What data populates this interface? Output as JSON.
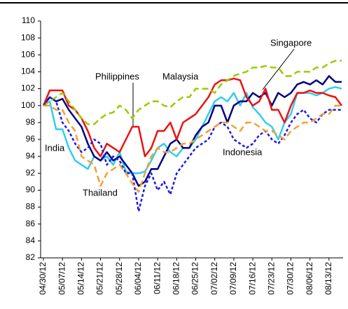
{
  "chart_data": {
    "type": "line",
    "categories": [
      "04/30/12",
      null,
      null,
      "05/07/12",
      null,
      null,
      "05/14/12",
      null,
      null,
      "05/21/12",
      null,
      null,
      "05/28/12",
      null,
      null,
      "06/04/12",
      null,
      null,
      "06/11/12",
      null,
      null,
      "06/18/12",
      null,
      null,
      "06/25/12",
      null,
      null,
      "07/02/12",
      null,
      null,
      "07/09/12",
      null,
      null,
      "07/16/12",
      null,
      null,
      "07/23/12",
      null,
      null,
      "07/30/12",
      null,
      null,
      "08/06/12",
      null,
      null,
      "08/13/12",
      null,
      null
    ],
    "series": [
      {
        "name": "India",
        "color": "#33ccee",
        "style": "solid",
        "values": [
          100,
          100.5,
          97.2,
          97.2,
          95,
          93.5,
          93,
          92.5,
          94,
          93.5,
          94,
          93,
          94.5,
          92.2,
          92,
          92,
          92.2,
          93.5,
          95,
          95.5,
          94.5,
          94,
          95,
          95,
          96,
          97.5,
          99,
          100.5,
          101,
          100.5,
          101.5,
          100,
          101.5,
          99.8,
          99,
          98,
          97.5,
          96,
          98,
          99,
          101.5,
          101.5,
          101.5,
          101.2,
          101.5,
          102,
          102.2,
          102
        ]
      },
      {
        "name": "Singapore",
        "color": "#000080",
        "style": "solid",
        "values": [
          100,
          101,
          100.5,
          100.8,
          99.5,
          98.5,
          97.5,
          95.5,
          94,
          93.5,
          94.5,
          93.5,
          94,
          93,
          92,
          90.5,
          91,
          92.5,
          92.5,
          94,
          95.5,
          96,
          95,
          95,
          96.5,
          97.5,
          98,
          100,
          100,
          98,
          100,
          100.5,
          100.5,
          101.5,
          101,
          101.5,
          100,
          101.5,
          101,
          101.5,
          102.5,
          102.8,
          102.5,
          103,
          102.5,
          103.5,
          102.8,
          102.8
        ]
      },
      {
        "name": "Philippines",
        "color": "#ee1111",
        "style": "solid",
        "values": [
          100,
          101.8,
          101.8,
          101.8,
          100,
          99.5,
          98.5,
          97,
          95,
          94,
          95.5,
          95,
          94.5,
          96,
          97.5,
          97.5,
          94,
          95,
          97,
          97,
          98,
          96,
          98,
          98.5,
          99,
          100,
          101,
          102.5,
          103,
          103,
          103.2,
          103,
          101,
          100,
          100.5,
          102,
          99.5,
          99.5,
          98,
          100,
          101.5,
          101.5,
          101.8,
          101.5,
          101.5,
          101.2,
          101,
          100
        ]
      },
      {
        "name": "Malaysia",
        "color": "#99cc00",
        "style": "dashed",
        "values": [
          100,
          100.5,
          101,
          101.5,
          100.5,
          99.5,
          98.5,
          97.8,
          97.8,
          98.5,
          99,
          99.2,
          100,
          99.5,
          98.5,
          99.5,
          100,
          100.5,
          100.5,
          100,
          99.8,
          100.5,
          101,
          101,
          102,
          102,
          102,
          101.5,
          102.5,
          103,
          103.5,
          103.8,
          104,
          104.5,
          104.5,
          104.7,
          104.5,
          104.5,
          103.5,
          103.5,
          104,
          104,
          104,
          104.5,
          104.5,
          105,
          105.3,
          105.3
        ]
      },
      {
        "name": "Indonesia",
        "color": "#1a1aee",
        "style": "dotted",
        "values": [
          100,
          101,
          100.5,
          98,
          97,
          95.5,
          94.5,
          95,
          96,
          95.5,
          93,
          94,
          93.5,
          92,
          92,
          87.5,
          90.5,
          92,
          90,
          91,
          89.5,
          92,
          93,
          94,
          95,
          95.5,
          96,
          97.5,
          98,
          97.5,
          96,
          95.5,
          95,
          95.5,
          96.5,
          97,
          96,
          95.5,
          96.5,
          98,
          99,
          99.5,
          98.5,
          98,
          99,
          99.5,
          99.5,
          99.5
        ]
      },
      {
        "name": "Thailand",
        "color": "#f4a030",
        "style": "dashed",
        "values": [
          100,
          100,
          99.5,
          99.5,
          98,
          97,
          94,
          93.5,
          93,
          90.5,
          92,
          92.5,
          93,
          92,
          90.8,
          89.8,
          92,
          94,
          95,
          94.5,
          94.5,
          95,
          95.5,
          95.5,
          96,
          96.5,
          97,
          97.5,
          98,
          98,
          97.5,
          97,
          98,
          98,
          97.5,
          97,
          97,
          96.5,
          96,
          97,
          97.5,
          98,
          98,
          98.5,
          99,
          99,
          100,
          100
        ]
      }
    ],
    "ylim": [
      82,
      110
    ],
    "yticks": [
      82,
      84,
      86,
      88,
      90,
      92,
      94,
      96,
      98,
      100,
      102,
      104,
      106,
      108,
      110
    ],
    "grid": false
  }
}
